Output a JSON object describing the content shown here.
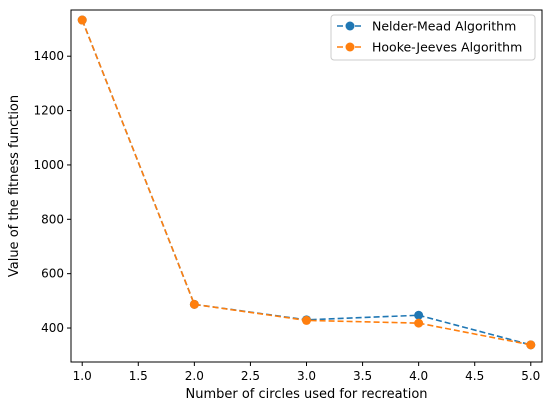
{
  "chart_data": {
    "type": "line",
    "title": "",
    "xlabel": "Number of circles used for recreation",
    "ylabel": "Value of the fitness function",
    "xlim": [
      0.9,
      5.1
    ],
    "ylim": [
      275,
      1570
    ],
    "x": [
      1.0,
      2.0,
      3.0,
      4.0,
      5.0
    ],
    "xticks": [
      "1.0",
      "1.5",
      "2.0",
      "2.5",
      "3.0",
      "3.5",
      "4.0",
      "4.5",
      "5.0"
    ],
    "xtick_values": [
      1.0,
      1.5,
      2.0,
      2.5,
      3.0,
      3.5,
      4.0,
      4.5,
      5.0
    ],
    "yticks": [
      "400",
      "600",
      "800",
      "1000",
      "1200",
      "1400"
    ],
    "ytick_values": [
      400,
      600,
      800,
      1000,
      1200,
      1400
    ],
    "grid": false,
    "legend_position": "top-right",
    "series": [
      {
        "name": "Nelder-Mead Algorithm",
        "values": [
          1533,
          487,
          430,
          447,
          338
        ],
        "color": "#1f77b4",
        "style": "dashed",
        "marker": "circle"
      },
      {
        "name": "Hooke-Jeeves Algorithm",
        "values": [
          1533,
          487,
          428,
          418,
          338
        ],
        "color": "#ff7f0e",
        "style": "dashed",
        "marker": "circle"
      }
    ]
  }
}
